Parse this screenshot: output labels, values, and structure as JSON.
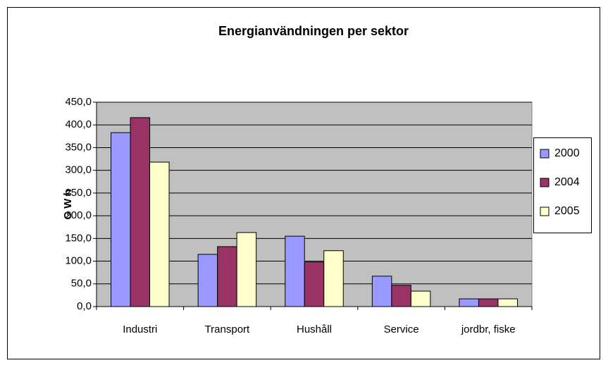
{
  "chart_data": {
    "type": "bar",
    "title": "Energianvändningen per sektor",
    "y_label": "G W h",
    "categories": [
      "Industri",
      "Transport",
      "Hushåll",
      "Service",
      "jordbr, fiske"
    ],
    "series": [
      {
        "name": "2000",
        "color": "#9999ff",
        "values": [
          383,
          115,
          155,
          67,
          17
        ]
      },
      {
        "name": "2004",
        "color": "#993366",
        "values": [
          416,
          132,
          98,
          47,
          17
        ]
      },
      {
        "name": "2005",
        "color": "#ffffcc",
        "values": [
          318,
          163,
          123,
          34,
          17
        ]
      }
    ],
    "ylim": [
      0,
      450
    ],
    "yticks": [
      {
        "value": 0,
        "label": "0,0"
      },
      {
        "value": 50,
        "label": "50,0"
      },
      {
        "value": 100,
        "label": "100,0"
      },
      {
        "value": 150,
        "label": "150,0"
      },
      {
        "value": 200,
        "label": "200,0"
      },
      {
        "value": 250,
        "label": "250,0"
      },
      {
        "value": 300,
        "label": "300,0"
      },
      {
        "value": 350,
        "label": "350,0"
      },
      {
        "value": 400,
        "label": "400,0"
      },
      {
        "value": 450,
        "label": "450,0"
      }
    ],
    "grid": true,
    "plot_background": "#c0c0c0",
    "legend": "right"
  }
}
